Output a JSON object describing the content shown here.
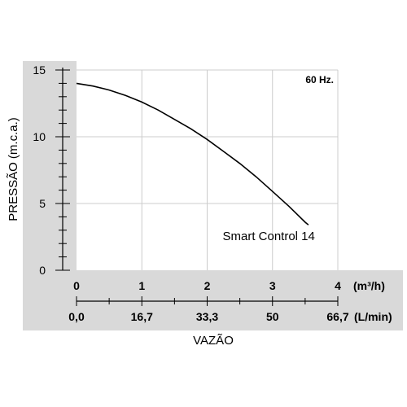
{
  "chart_data": {
    "type": "line",
    "frequency_label": "60 Hz.",
    "ylabel": "PRESSÃO (m.c.a.)",
    "xlabel": "VAZÃO",
    "y_ticks": [
      "0",
      "5",
      "10",
      "15"
    ],
    "y_tick_values": [
      0,
      5,
      10,
      15
    ],
    "ylim": [
      0,
      15
    ],
    "x_ticks_m3h": [
      "0",
      "1",
      "2",
      "3",
      "4"
    ],
    "x_tick_values_m3h": [
      0,
      1,
      2,
      3,
      4
    ],
    "x_unit_m3h": "(m³/h)",
    "x_ticks_lmin": [
      "0,0",
      "16,7",
      "33,3",
      "50",
      "66,7"
    ],
    "x_unit_lmin": "(L/min)",
    "xlim": [
      0,
      4
    ],
    "grid": true,
    "series": [
      {
        "name": "Smart Control 14",
        "x": [
          0,
          0.25,
          0.5,
          0.75,
          1.0,
          1.25,
          1.5,
          1.75,
          2.0,
          2.25,
          2.5,
          2.75,
          3.0,
          3.25,
          3.5,
          3.55
        ],
        "y": [
          14.0,
          13.8,
          13.5,
          13.1,
          12.6,
          12.0,
          11.3,
          10.6,
          9.8,
          8.9,
          8.0,
          7.0,
          5.9,
          4.8,
          3.6,
          3.4
        ]
      }
    ]
  },
  "colors": {
    "panel": "#d9d9d9",
    "plot_bg": "#ffffff",
    "grid": "#cccccc",
    "axis": "#000000",
    "curve": "#000000",
    "text": "#000000"
  }
}
